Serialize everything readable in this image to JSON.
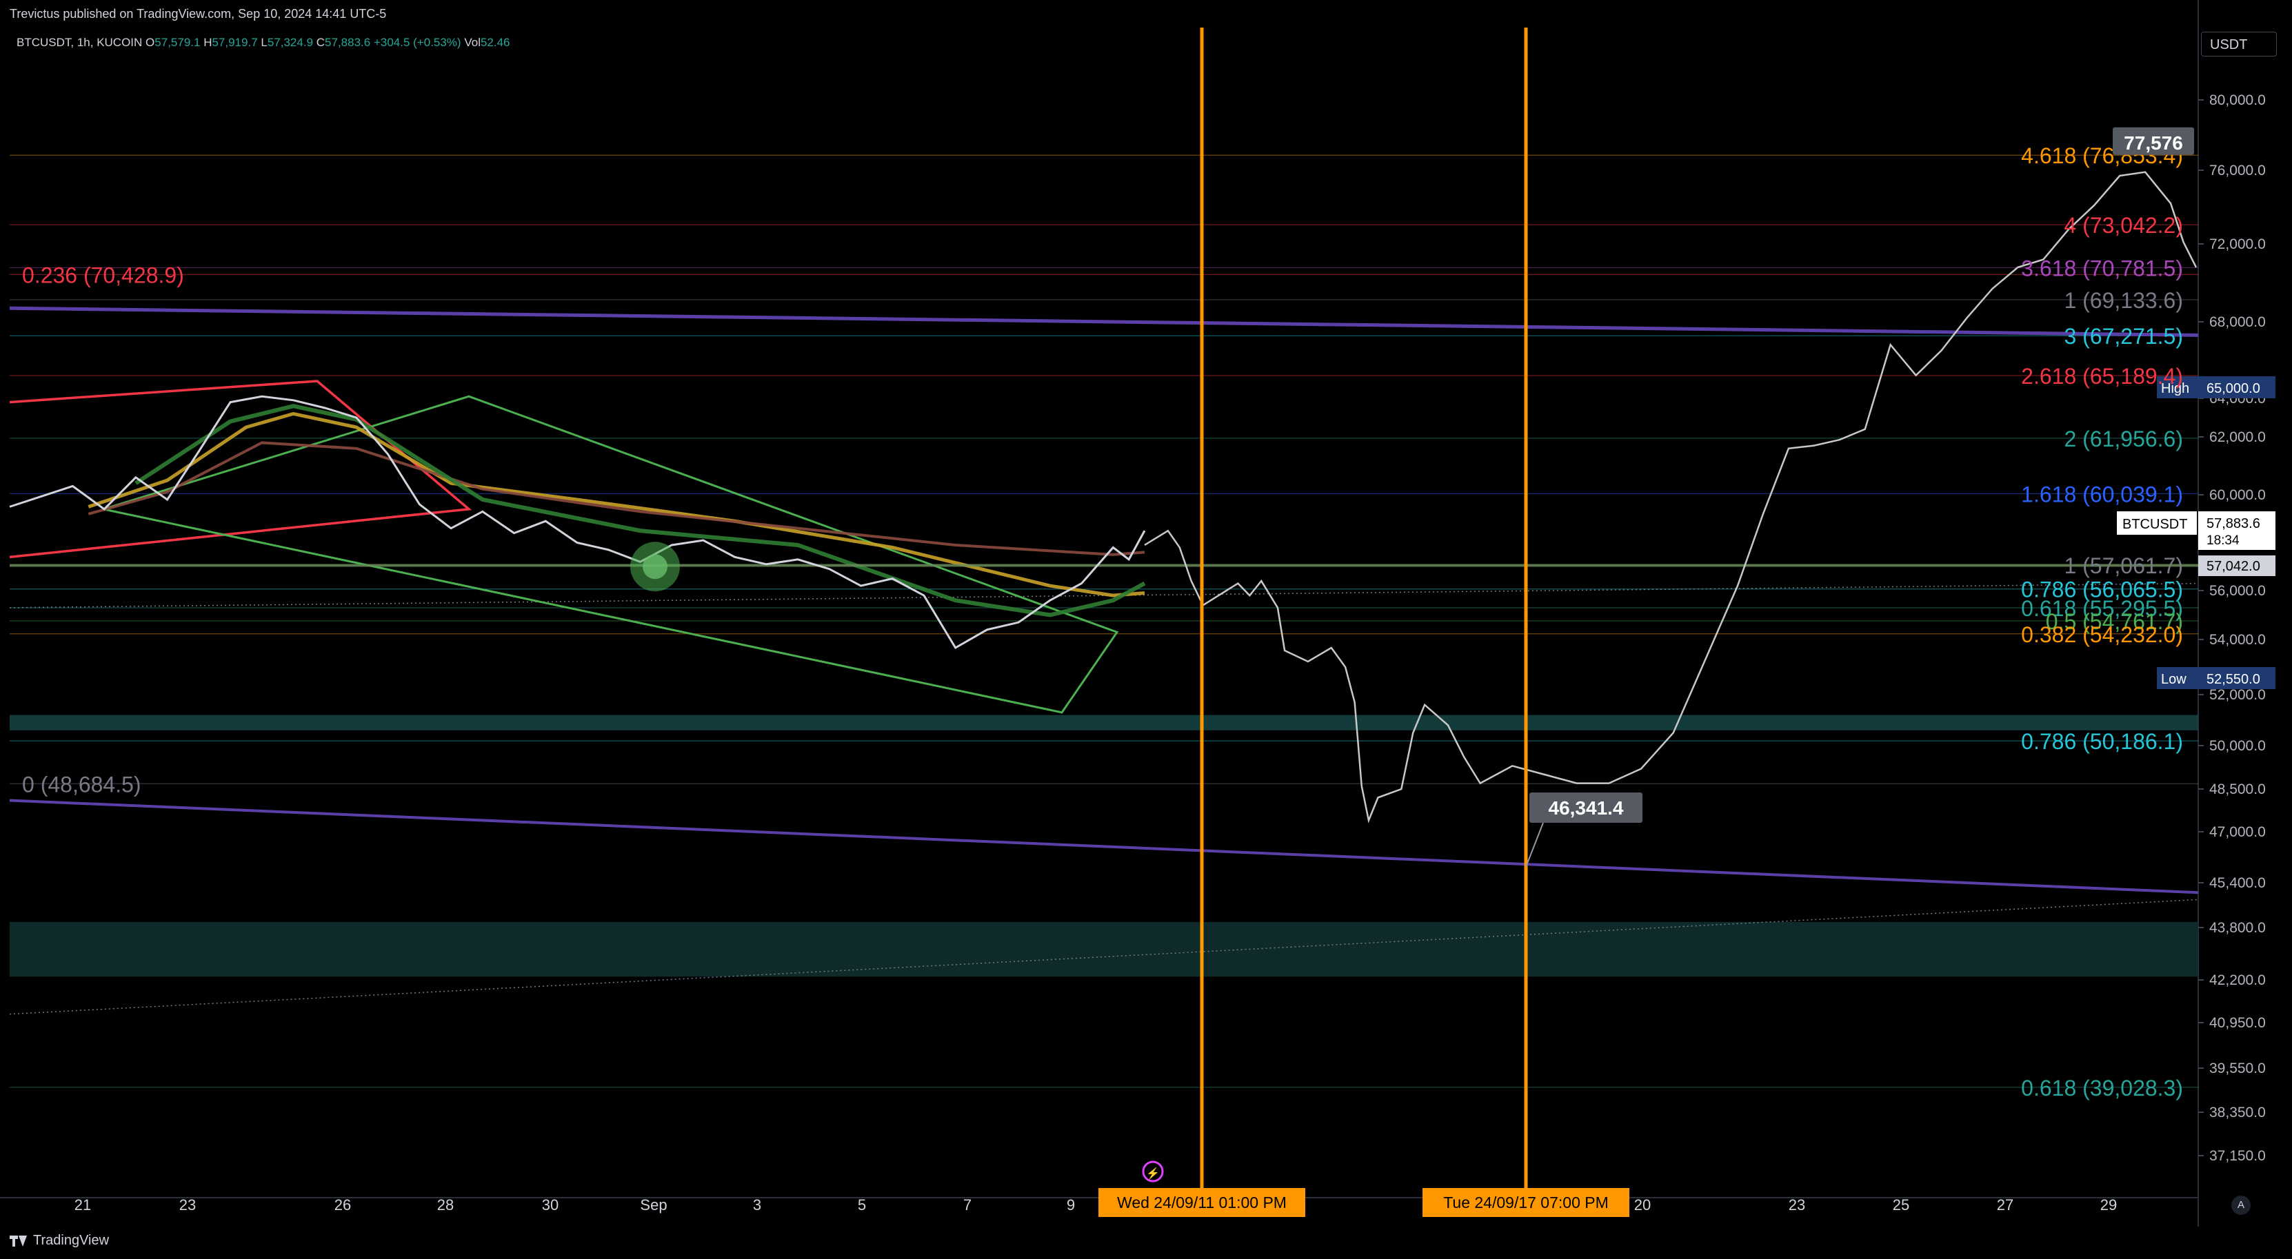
{
  "header": {
    "publisher": "Trevictus published on TradingView.com, Sep 10, 2024 14:41 UTC-5",
    "symbol": "BTCUSDT, 1h, KUCOIN",
    "ohlc": [
      {
        "k": "O",
        "v": "57,579.1"
      },
      {
        "k": "H",
        "v": "57,919.7"
      },
      {
        "k": "L",
        "v": "57,324.9"
      },
      {
        "k": "C",
        "v": "57,883.6"
      },
      {
        "k": "",
        "v": "+304.5 (+0.53%)"
      },
      {
        "k": "Vol",
        "v": "52.46"
      }
    ]
  },
  "currency_button": "USDT",
  "footer": {
    "brand": "TradingView",
    "auto": "A"
  },
  "colors": {
    "background": "#000000",
    "candles": "#d1d4dc",
    "orange": "#ff9800",
    "purple": "#5b3fa8",
    "fib_cyan": "#26c6da",
    "fib_red": "#f23645",
    "fib_green": "#4caf50"
  },
  "chart_data": {
    "type": "line",
    "y_axis": {
      "ticks": [
        "80,000.0",
        "76,000.0",
        "72,000.0",
        "68,000.0",
        "64,000.0",
        "62,000.0",
        "60,000.0",
        "56,000.0",
        "54,000.0",
        "52,000.0",
        "50,000.0",
        "48,500.0",
        "47,000.0",
        "45,400.0",
        "43,800.0",
        "42,200.0",
        "40,950.0",
        "39,550.0",
        "38,350.0",
        "37,150.0"
      ],
      "ylim": [
        36500,
        82000
      ]
    },
    "x_axis": {
      "ticks": [
        "21",
        "23",
        "26",
        "28",
        "30",
        "Sep",
        "3",
        "5",
        "7",
        "9",
        "20",
        "23",
        "25",
        "27",
        "29"
      ]
    },
    "price_badges": [
      {
        "label": "High",
        "value": "65,000.0"
      },
      {
        "label": "Low",
        "value": "52,550.0"
      },
      {
        "label": "BTCUSDT",
        "value": "57,883.6",
        "sub": "18:34"
      },
      {
        "label": "",
        "value": "57,042.0"
      }
    ],
    "vertical_markers": [
      {
        "label": "Wed 24/09/11   01:00 PM"
      },
      {
        "label": "Tue 24/09/17   07:00 PM"
      }
    ],
    "callouts": [
      {
        "text": "77,576",
        "value": 77576
      },
      {
        "text": "46,341.4",
        "value": 46341.4
      }
    ],
    "fib_left": [
      {
        "text": "0.236 (70,428.9)",
        "value": 70428.9,
        "color": "#f23645"
      },
      {
        "text": "0 (48,684.5)",
        "value": 48684.5,
        "color": "#787b86"
      }
    ],
    "fib_right": [
      {
        "text": "4.618 (76,853.4)",
        "value": 76853.4,
        "color": "#ff9800"
      },
      {
        "text": "4 (73,042.2)",
        "value": 73042.2,
        "color": "#f23645"
      },
      {
        "text": "3.618 (70,781.5)",
        "value": 70781.5,
        "color": "#ab47bc"
      },
      {
        "text": "1 (69,133.6)",
        "value": 69133.6,
        "color": "#787b86"
      },
      {
        "text": "3 (67,271.5)",
        "value": 67271.5,
        "color": "#26c6da"
      },
      {
        "text": "2.618 (65,189.4)",
        "value": 65189.4,
        "color": "#f23645"
      },
      {
        "text": "2 (61,956.6)",
        "value": 61956.6,
        "color": "#26a69a"
      },
      {
        "text": "1.618 (60,039.1)",
        "value": 60039.1,
        "color": "#2962ff"
      },
      {
        "text": "1 (57,061.7)",
        "value": 57061.7,
        "color": "#787b86"
      },
      {
        "text": "0.786 (56,065.5)",
        "value": 56065.5,
        "color": "#26c6da"
      },
      {
        "text": "0.618 (55,295.5)",
        "value": 55295.5,
        "color": "#26a69a"
      },
      {
        "text": "0.5 (54,761.7)",
        "value": 54761.7,
        "color": "#4caf50"
      },
      {
        "text": "0.382 (54,232.0)",
        "value": 54232.0,
        "color": "#ff9800"
      },
      {
        "text": "0.786 (50,186.1)",
        "value": 50186.1,
        "color": "#26c6da"
      },
      {
        "text": "0.618 (39,028.3)",
        "value": 39028.3,
        "color": "#26a69a"
      }
    ],
    "price_history": [
      [
        0,
        59500
      ],
      [
        4,
        60300
      ],
      [
        6,
        59400
      ],
      [
        8,
        60600
      ],
      [
        10,
        59800
      ],
      [
        12,
        61500
      ],
      [
        14,
        63800
      ],
      [
        16,
        64100
      ],
      [
        18,
        63900
      ],
      [
        20,
        63500
      ],
      [
        22,
        63000
      ],
      [
        24,
        61400
      ],
      [
        26,
        59600
      ],
      [
        28,
        58600
      ],
      [
        30,
        59300
      ],
      [
        32,
        58400
      ],
      [
        34,
        58900
      ],
      [
        36,
        58000
      ],
      [
        38,
        57700
      ],
      [
        40,
        57200
      ],
      [
        42,
        57900
      ],
      [
        44,
        58100
      ],
      [
        46,
        57400
      ],
      [
        48,
        57100
      ],
      [
        50,
        57300
      ],
      [
        52,
        56900
      ],
      [
        54,
        56200
      ],
      [
        56,
        56500
      ],
      [
        58,
        55800
      ],
      [
        60,
        53700
      ],
      [
        62,
        54400
      ],
      [
        64,
        54700
      ],
      [
        66,
        55600
      ],
      [
        68,
        56300
      ],
      [
        70,
        57800
      ],
      [
        71,
        57300
      ],
      [
        72,
        58500
      ]
    ],
    "projection": [
      [
        72,
        57900
      ],
      [
        73,
        58500
      ],
      [
        73.5,
        57800
      ],
      [
        74,
        56400
      ],
      [
        74.5,
        55400
      ],
      [
        75,
        55700
      ],
      [
        76,
        56300
      ],
      [
        76.5,
        55800
      ],
      [
        77,
        56400
      ],
      [
        77.7,
        55300
      ],
      [
        78,
        53600
      ],
      [
        79,
        53200
      ],
      [
        80,
        53700
      ],
      [
        80.6,
        53000
      ],
      [
        81,
        51700
      ],
      [
        81.3,
        48600
      ],
      [
        81.6,
        47400
      ],
      [
        82,
        48200
      ],
      [
        83,
        48500
      ],
      [
        83.5,
        50500
      ],
      [
        84,
        51600
      ],
      [
        85,
        50800
      ],
      [
        85.5,
        49600
      ],
      [
        86,
        48700
      ],
      [
        87,
        49300
      ],
      [
        88,
        49000
      ],
      [
        89,
        48700
      ],
      [
        90,
        48700
      ],
      [
        91,
        49200
      ],
      [
        92,
        50500
      ],
      [
        94,
        56200
      ],
      [
        95,
        59200
      ],
      [
        96,
        61600
      ],
      [
        97,
        61700
      ],
      [
        98,
        61900
      ],
      [
        99,
        62400
      ],
      [
        100,
        66800
      ],
      [
        101,
        65200
      ],
      [
        102,
        66500
      ],
      [
        103,
        68200
      ],
      [
        104,
        69700
      ],
      [
        105,
        70800
      ],
      [
        106,
        71200
      ],
      [
        107,
        72800
      ],
      [
        108,
        74100
      ],
      [
        109,
        75700
      ],
      [
        110,
        75900
      ],
      [
        111,
        74200
      ],
      [
        111.5,
        72100
      ],
      [
        112,
        70800
      ]
    ]
  }
}
